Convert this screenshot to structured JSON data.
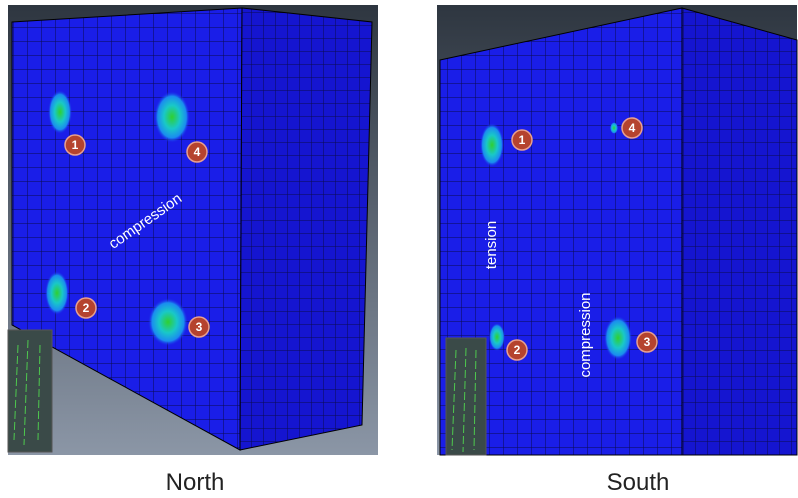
{
  "panels": [
    {
      "caption": "North",
      "annotations": [
        "compression"
      ],
      "markers": [
        "1",
        "2",
        "3",
        "4"
      ]
    },
    {
      "caption": "South",
      "annotations": [
        "tension",
        "compression"
      ],
      "markers": [
        "1",
        "2",
        "3",
        "4"
      ]
    }
  ]
}
